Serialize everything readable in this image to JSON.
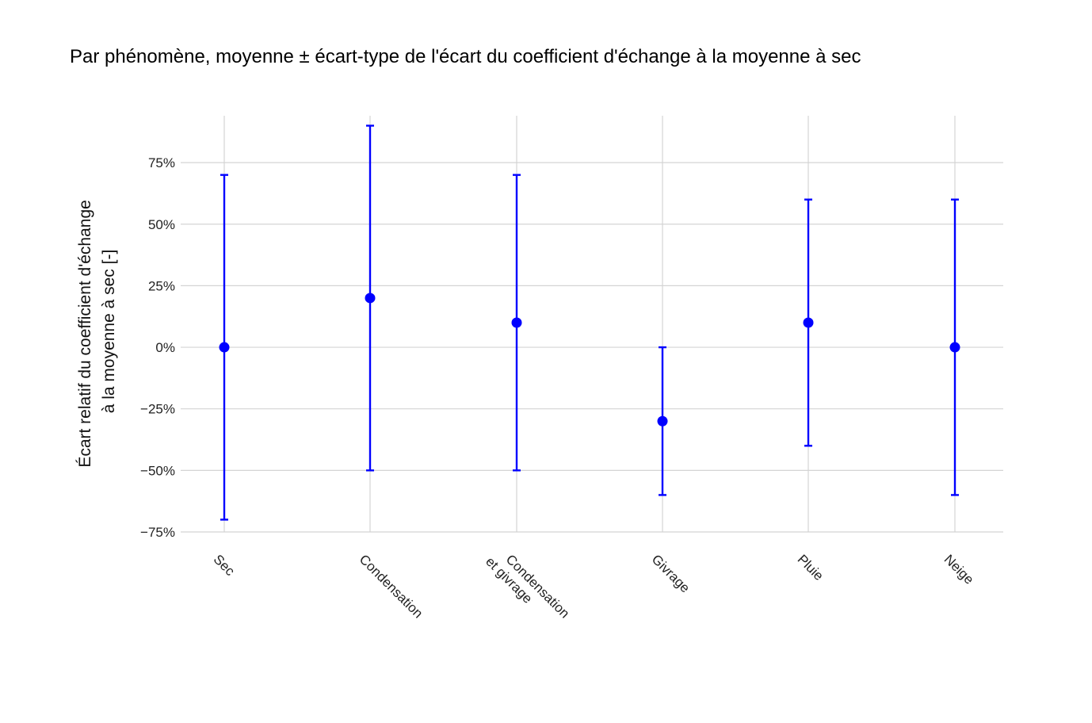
{
  "chart_data": {
    "type": "errorbar",
    "title": "Par phénomène, moyenne ± écart-type de l'écart du coefficient d'échange à la moyenne à sec",
    "xlabel": "",
    "ylabel": [
      "Écart relatif du coefficient d'échange",
      "à la moyenne à sec [-]"
    ],
    "categories": [
      [
        "Sec"
      ],
      [
        "Condensation"
      ],
      [
        "Condensation",
        "et givrage"
      ],
      [
        "Givrage"
      ],
      [
        "Pluie"
      ],
      [
        "Neige"
      ]
    ],
    "series": [
      {
        "mean": [
          0,
          20,
          10,
          -30,
          10,
          0
        ],
        "lower": [
          -70,
          -50,
          -50,
          -60,
          -40,
          -60
        ],
        "upper": [
          70,
          90,
          70,
          0,
          60,
          60
        ]
      }
    ],
    "ylim": [
      -75,
      95
    ],
    "yticks": [
      -75,
      -50,
      -25,
      0,
      25,
      50,
      75
    ],
    "ytick_labels": [
      "−75%",
      "−50%",
      "−25%",
      "0%",
      "25%",
      "50%",
      "75%"
    ],
    "grid": true,
    "colors": {
      "series": "#0000ff",
      "grid": "#d4d4d4"
    }
  }
}
